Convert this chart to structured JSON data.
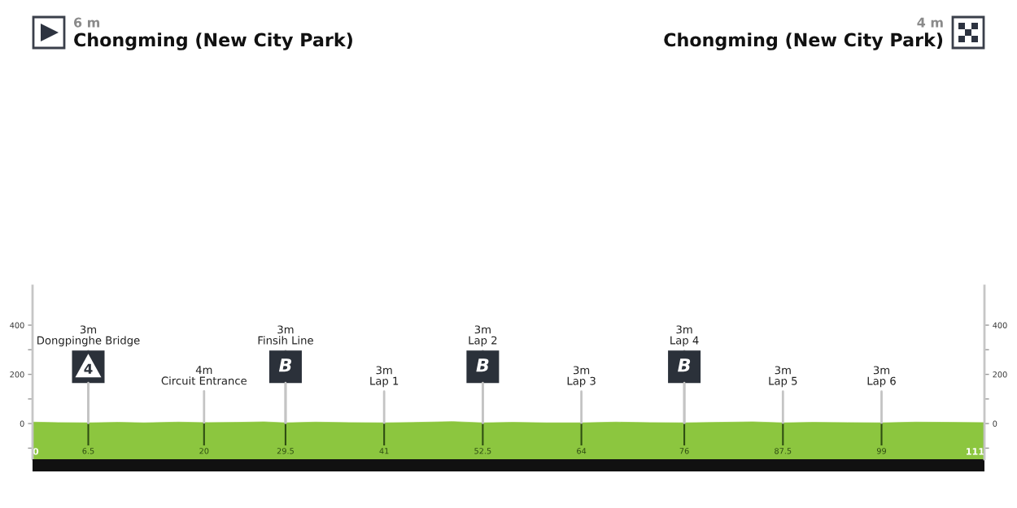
{
  "chart_data": {
    "type": "area",
    "color": "#8cc63f",
    "x": [
      0,
      3,
      6.5,
      10,
      13,
      17,
      20,
      24,
      27,
      29.5,
      33,
      37,
      41,
      45,
      49,
      52.5,
      56,
      60,
      64,
      68,
      72,
      76,
      80,
      84,
      87.5,
      91,
      95,
      99,
      103,
      107,
      111
    ],
    "values": [
      6,
      4,
      3,
      5,
      3,
      6,
      4,
      5,
      7,
      3,
      6,
      4,
      3,
      5,
      8,
      3,
      5,
      3,
      3,
      6,
      4,
      3,
      5,
      7,
      3,
      5,
      4,
      3,
      6,
      5,
      4
    ],
    "xlim": [
      0,
      111
    ],
    "xticks": [
      0,
      6.5,
      20,
      29.5,
      41,
      52.5,
      64,
      76,
      87.5,
      99,
      111
    ],
    "grid": "x",
    "ylim": [
      -145,
      560
    ],
    "yticks": [
      {
        "value": -100,
        "label": null
      },
      0,
      {
        "value": 100,
        "label": null
      },
      200,
      {
        "value": 300,
        "label": null
      },
      400
    ],
    "y2lim": [
      -145,
      560
    ],
    "y2ticks": [
      {
        "value": -100,
        "label": null
      },
      0,
      {
        "value": 100,
        "label": null
      },
      200,
      {
        "value": 300,
        "label": null
      },
      400
    ],
    "bands": [
      {
        "axis": "y",
        "from": -145,
        "to": 0,
        "color": "#8cc63f"
      }
    ],
    "annotations": [
      "6 m",
      "Chongming (New City Park)",
      "4 m",
      "Chongming (New City Park)",
      {
        "text": "4",
        "x": 6.5,
        "y": 3
      },
      {
        "text": "3m\nDongpinghe Bridge",
        "x": 6.5,
        "y": 3
      },
      {
        "text": "4m\nCircuit Entrance",
        "x": 20,
        "y": 4
      },
      {
        "text": "B",
        "x": 29.5,
        "y": 3
      },
      {
        "text": "3m\nFinsih Line",
        "x": 29.5,
        "y": 3
      },
      {
        "text": "3m\nLap 1",
        "x": 41,
        "y": 3
      },
      {
        "text": "B",
        "x": 52.5,
        "y": 3
      },
      {
        "text": "3m\nLap 2",
        "x": 52.5,
        "y": 3
      },
      {
        "text": "3m\nLap 3",
        "x": 64,
        "y": 3
      },
      {
        "text": "B",
        "x": 76,
        "y": 3
      },
      {
        "text": "3m\nLap 4",
        "x": 76,
        "y": 3
      },
      {
        "text": "3m\nLap 5",
        "x": 87.5,
        "y": 3
      },
      {
        "text": "3m\nLap 6",
        "x": 99,
        "y": 3
      }
    ]
  }
}
